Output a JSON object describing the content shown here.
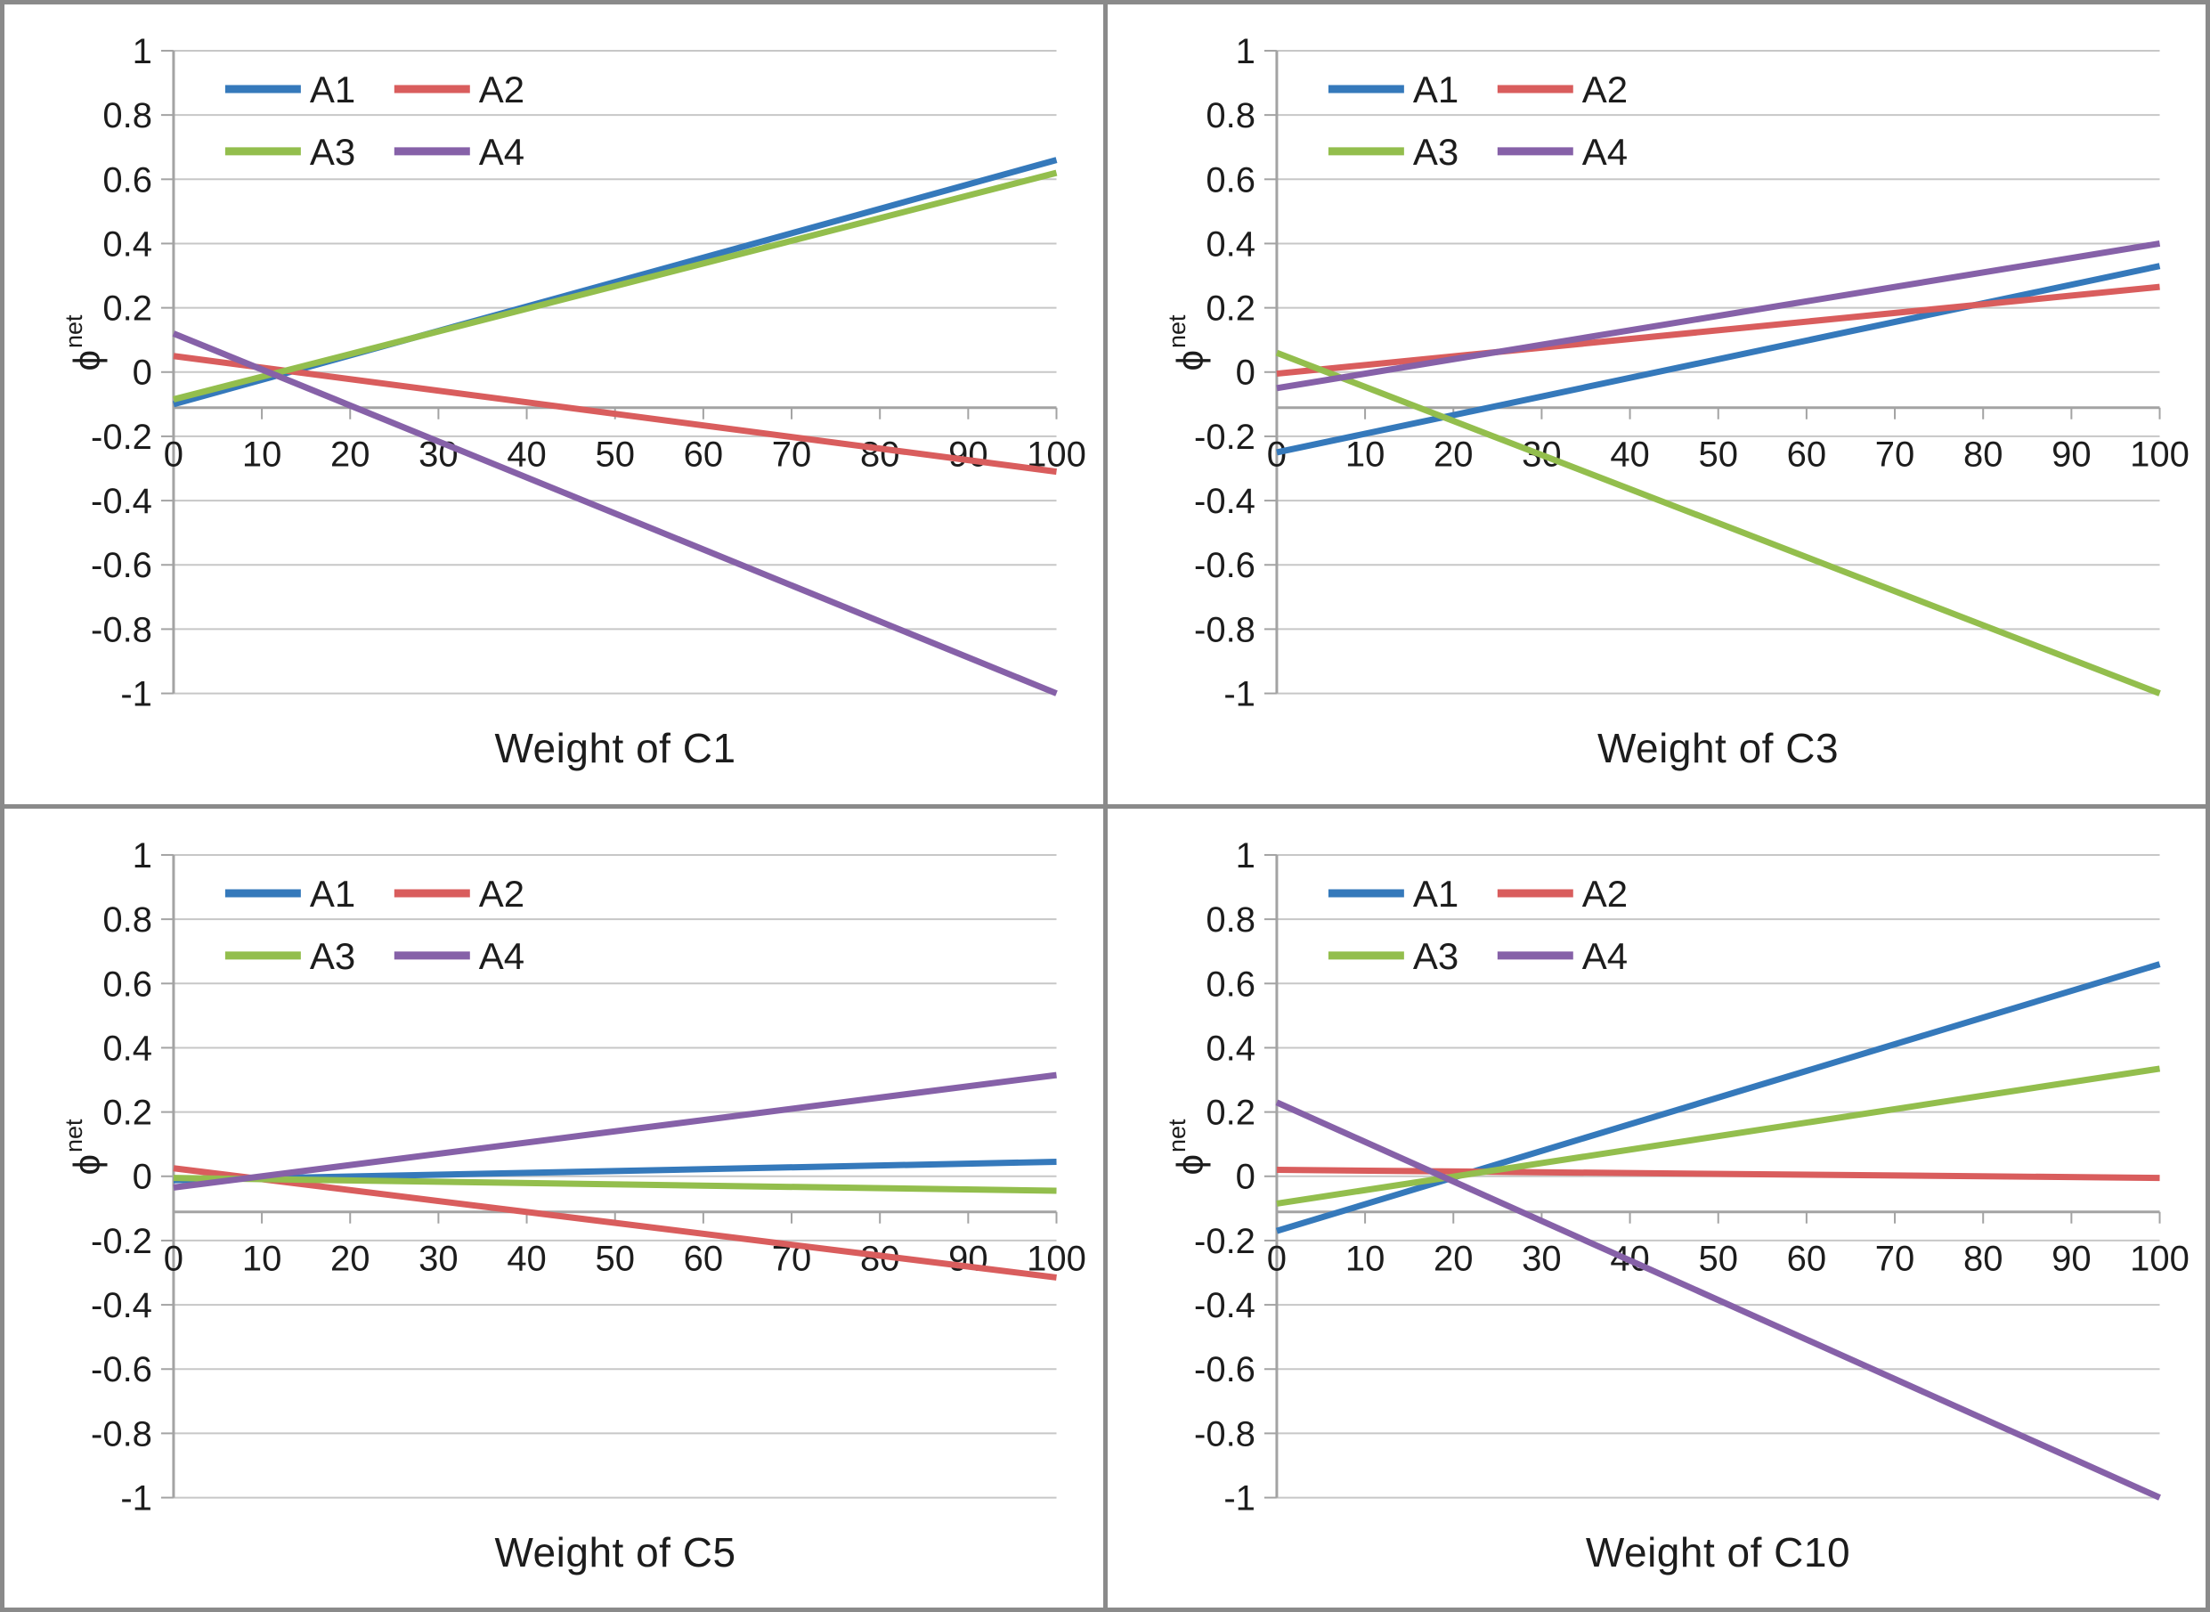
{
  "page": {
    "background": "#ffffff",
    "border_color": "#8a8a8a",
    "description": "2x2 grid of sensitivity line charts"
  },
  "colors": {
    "A1": "#3579BB",
    "A2": "#D95D5D",
    "A3": "#93BE4D",
    "A4": "#8661A8",
    "gridline": "#C7C7C7",
    "axis": "#A3A3A3",
    "text": "#1c1c1c"
  },
  "axes": {
    "ylim": [
      -1,
      1
    ],
    "xlim": [
      0,
      100
    ],
    "y_ticks": [
      "1",
      "0.8",
      "0.6",
      "0.4",
      "0.2",
      "0",
      "-0.2",
      "-0.4",
      "-0.6",
      "-0.8",
      "-1"
    ],
    "x_ticks": [
      "0",
      "10",
      "20",
      "30",
      "40",
      "50",
      "60",
      "70",
      "80",
      "90",
      "100"
    ],
    "ylabel_base": "ϕ",
    "ylabel_sup": "net",
    "x_axis_position": -0.11,
    "grid": true,
    "legend_position": "inside-top-left"
  },
  "legend": {
    "entries": [
      "A1",
      "A2",
      "A3",
      "A4"
    ]
  },
  "chart_data": [
    {
      "type": "line",
      "title": "Weight of C1",
      "xlabel": "Weight of C1",
      "ylabel": "phi-net",
      "x": [
        0,
        100
      ],
      "series": [
        {
          "name": "A1",
          "y": [
            -0.1,
            0.66
          ]
        },
        {
          "name": "A2",
          "y": [
            0.05,
            -0.31
          ]
        },
        {
          "name": "A3",
          "y": [
            -0.085,
            0.62
          ]
        },
        {
          "name": "A4",
          "y": [
            0.12,
            -1.0
          ]
        }
      ]
    },
    {
      "type": "line",
      "title": "Weight of C3",
      "xlabel": "Weight of C3",
      "ylabel": "phi-net",
      "x": [
        0,
        100
      ],
      "series": [
        {
          "name": "A1",
          "y": [
            -0.25,
            0.33
          ]
        },
        {
          "name": "A2",
          "y": [
            -0.005,
            0.265
          ]
        },
        {
          "name": "A3",
          "y": [
            0.06,
            -1.0
          ]
        },
        {
          "name": "A4",
          "y": [
            -0.05,
            0.4
          ]
        }
      ]
    },
    {
      "type": "line",
      "title": "Weight of C5",
      "xlabel": "Weight of C5",
      "ylabel": "phi-net",
      "x": [
        0,
        100
      ],
      "series": [
        {
          "name": "A1",
          "y": [
            -0.012,
            0.045
          ]
        },
        {
          "name": "A2",
          "y": [
            0.025,
            -0.315
          ]
        },
        {
          "name": "A3",
          "y": [
            -0.005,
            -0.045
          ]
        },
        {
          "name": "A4",
          "y": [
            -0.035,
            0.315
          ]
        }
      ]
    },
    {
      "type": "line",
      "title": "Weight of C10",
      "xlabel": "Weight of C10",
      "ylabel": "phi-net",
      "x": [
        0,
        100
      ],
      "series": [
        {
          "name": "A1",
          "y": [
            -0.17,
            0.66
          ]
        },
        {
          "name": "A2",
          "y": [
            0.02,
            -0.005
          ]
        },
        {
          "name": "A3",
          "y": [
            -0.085,
            0.335
          ]
        },
        {
          "name": "A4",
          "y": [
            0.23,
            -1.0
          ]
        }
      ]
    }
  ]
}
